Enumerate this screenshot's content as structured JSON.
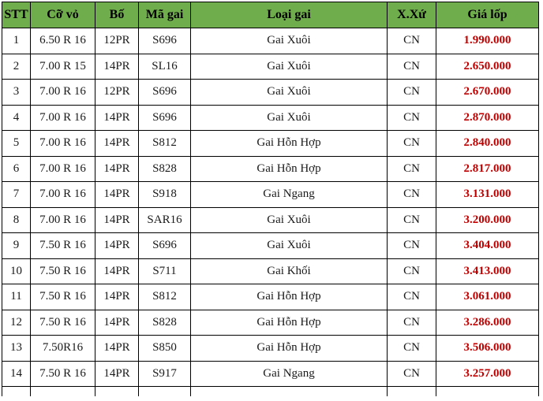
{
  "colors": {
    "header_bg": "#6FAC4C",
    "border": "#000000",
    "price_text": "#C00000",
    "body_text": "#1A1A1A"
  },
  "table": {
    "columns": [
      "STT",
      "Cỡ vỏ",
      "Bố",
      "Mã gai",
      "Loại gai",
      "X.Xứ",
      "Giá lốp"
    ],
    "column_keys": [
      "stt",
      "size",
      "ply",
      "code",
      "tread",
      "origin",
      "price"
    ],
    "rows": [
      [
        "1",
        "6.50 R 16",
        "12PR",
        "S696",
        "Gai Xuôi",
        "CN",
        "1.990.000"
      ],
      [
        "2",
        "7.00 R 15",
        "14PR",
        "SL16",
        "Gai Xuôi",
        "CN",
        "2.650.000"
      ],
      [
        "3",
        "7.00 R 16",
        "12PR",
        "S696",
        "Gai Xuôi",
        "CN",
        "2.670.000"
      ],
      [
        "4",
        "7.00 R 16",
        "14PR",
        "S696",
        "Gai Xuôi",
        "CN",
        "2.870.000"
      ],
      [
        "5",
        "7.00 R 16",
        "14PR",
        "S812",
        "Gai Hỗn Hợp",
        "CN",
        "2.840.000"
      ],
      [
        "6",
        "7.00 R 16",
        "14PR",
        "S828",
        "Gai Hỗn Hợp",
        "CN",
        "2.817.000"
      ],
      [
        "7",
        "7.00 R 16",
        "14PR",
        "S918",
        "Gai Ngang",
        "CN",
        "3.131.000"
      ],
      [
        "8",
        "7.00 R 16",
        "14PR",
        "SAR16",
        "Gai Xuôi",
        "CN",
        "3.200.000"
      ],
      [
        "9",
        "7.50 R 16",
        "14PR",
        "S696",
        "Gai Xuôi",
        "CN",
        "3.404.000"
      ],
      [
        "10",
        "7.50 R 16",
        "14PR",
        "S711",
        "Gai Khối",
        "CN",
        "3.413.000"
      ],
      [
        "11",
        "7.50 R 16",
        "14PR",
        "S812",
        "Gai Hỗn Hợp",
        "CN",
        "3.061.000"
      ],
      [
        "12",
        "7.50 R 16",
        "14PR",
        "S828",
        "Gai Hỗn Hợp",
        "CN",
        "3.286.000"
      ],
      [
        "13",
        "7.50R16",
        "14PR",
        "S850",
        "Gai Hỗn Hợp",
        "CN",
        "3.506.000"
      ],
      [
        "14",
        "7.50 R 16",
        "14PR",
        "S917",
        "Gai Ngang",
        "CN",
        "3.257.000"
      ]
    ]
  }
}
